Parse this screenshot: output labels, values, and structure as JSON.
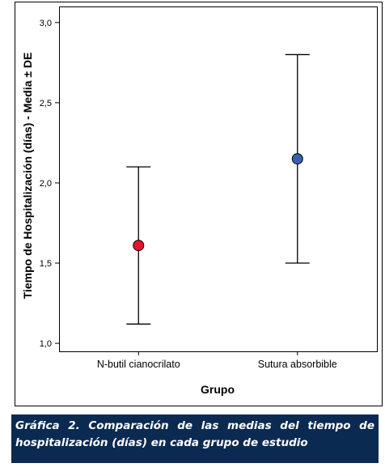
{
  "chart_data": {
    "type": "errorbar",
    "ylabel": "Tiempo de Hospitalización (días) - Media ± DE",
    "xlabel": "Grupo",
    "categories": [
      "N-butil cianocrilato",
      "Sutura absorbible"
    ],
    "means": [
      1.61,
      2.15
    ],
    "lower": [
      1.12,
      1.5
    ],
    "upper": [
      2.1,
      2.8
    ],
    "point_colors": [
      "#e8102e",
      "#3a5fae"
    ],
    "ylim": [
      0.95,
      3.1
    ],
    "yticks": [
      1.0,
      1.5,
      2.0,
      2.5,
      3.0
    ],
    "ytick_labels": [
      "1,0",
      "1,5",
      "2,0",
      "2,5",
      "3,0"
    ],
    "grid": false,
    "legend": "none"
  },
  "caption": {
    "text": "Gráfica 2. Comparación de las medias del tiempo de hospitalización (días) en cada grupo de estudio",
    "background": "#0b2a52"
  }
}
